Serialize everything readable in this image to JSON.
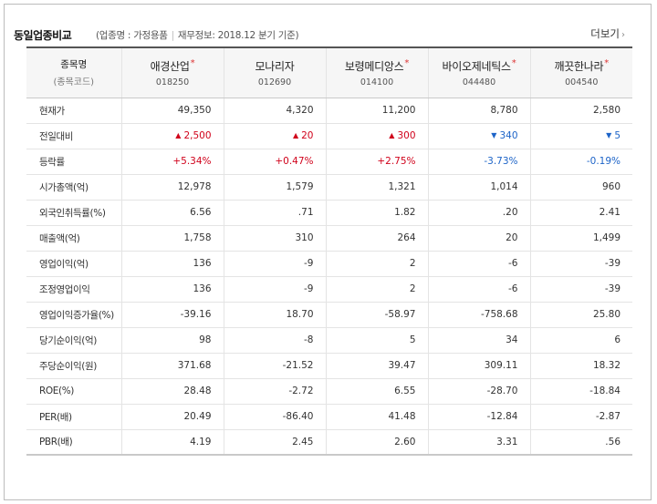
{
  "header": {
    "title": "동일업종비교",
    "industry_label": "(업종명 : 가정용품",
    "finance_label": "재무정보: 2018.12 분기 기준)",
    "more_label": "더보기",
    "more_icon": "chevron-right-icon"
  },
  "table": {
    "corner": {
      "name": "종목명",
      "code": "(종목코드)"
    },
    "companies": [
      {
        "name": "애경산업",
        "code": "018250",
        "star": "*"
      },
      {
        "name": "모나리자",
        "code": "012690",
        "star": ""
      },
      {
        "name": "보령메디앙스",
        "code": "014100",
        "star": "*"
      },
      {
        "name": "바이오제네틱스",
        "code": "044480",
        "star": "*"
      },
      {
        "name": "깨끗한나라",
        "code": "004540",
        "star": "*"
      }
    ],
    "rows": [
      {
        "label": "현재가",
        "values": [
          "49,350",
          "4,320",
          "11,200",
          "8,780",
          "2,580"
        ]
      },
      {
        "label": "전일대비",
        "values": [
          "2,500",
          "20",
          "300",
          "340",
          "5"
        ],
        "dirs": [
          "up",
          "up",
          "up",
          "down",
          "down"
        ],
        "arrows": {
          "up": "▲",
          "down": "▼"
        }
      },
      {
        "label": "등락률",
        "values": [
          "+5.34%",
          "+0.47%",
          "+2.75%",
          "-3.73%",
          "-0.19%"
        ],
        "dirs": [
          "up",
          "up",
          "up",
          "down",
          "down"
        ]
      },
      {
        "label": "시가총액(억)",
        "values": [
          "12,978",
          "1,579",
          "1,321",
          "1,014",
          "960"
        ]
      },
      {
        "label": "외국인취득률(%)",
        "values": [
          "6.56",
          ".71",
          "1.82",
          ".20",
          "2.41"
        ]
      },
      {
        "label": "매출액(억)",
        "values": [
          "1,758",
          "310",
          "264",
          "20",
          "1,499"
        ]
      },
      {
        "label": "영업이익(억)",
        "values": [
          "136",
          "-9",
          "2",
          "-6",
          "-39"
        ]
      },
      {
        "label": "조정영업이익",
        "values": [
          "136",
          "-9",
          "2",
          "-6",
          "-39"
        ]
      },
      {
        "label": "영업이익증가율(%)",
        "values": [
          "-39.16",
          "18.70",
          "-58.97",
          "-758.68",
          "25.80"
        ]
      },
      {
        "label": "당기순이익(억)",
        "values": [
          "98",
          "-8",
          "5",
          "34",
          "6"
        ]
      },
      {
        "label": "주당순이익(원)",
        "values": [
          "371.68",
          "-21.52",
          "39.47",
          "309.11",
          "18.32"
        ]
      },
      {
        "label": "ROE(%)",
        "values": [
          "28.48",
          "-2.72",
          "6.55",
          "-28.70",
          "-18.84"
        ]
      },
      {
        "label": "PER(배)",
        "values": [
          "20.49",
          "-86.40",
          "41.48",
          "-12.84",
          "-2.87"
        ]
      },
      {
        "label": "PBR(배)",
        "values": [
          "4.19",
          "2.45",
          "2.60",
          "3.31",
          ".56"
        ]
      }
    ]
  },
  "colors": {
    "up": "#d0021b",
    "down": "#1d64c8",
    "star": "#dd3333"
  }
}
